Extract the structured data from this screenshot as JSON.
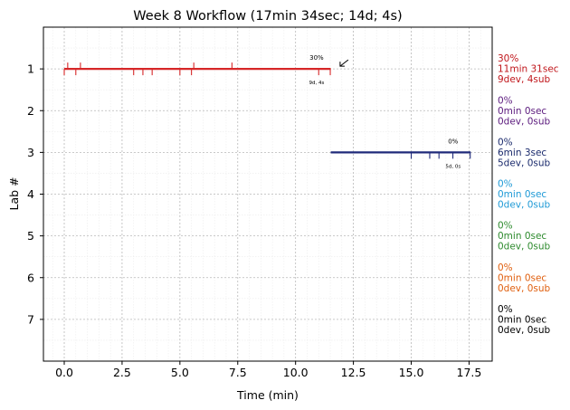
{
  "chart_data": {
    "type": "line",
    "title": "Week 8 Workflow (17min 34sec; 14d; 4s)",
    "xlabel": "Time (min)",
    "ylabel": "Lab #",
    "xlim": [
      -0.9,
      18.5
    ],
    "ylim": [
      8,
      0
    ],
    "x_ticks": [
      {
        "value": 0.0,
        "label": "0.0"
      },
      {
        "value": 2.5,
        "label": "2.5"
      },
      {
        "value": 5.0,
        "label": "5.0"
      },
      {
        "value": 7.5,
        "label": "7.5"
      },
      {
        "value": 10.0,
        "label": "10.0"
      },
      {
        "value": 12.5,
        "label": "12.5"
      },
      {
        "value": 15.0,
        "label": "15.0"
      },
      {
        "value": 17.5,
        "label": "17.5"
      }
    ],
    "y_ticks": [
      {
        "value": 1,
        "label": "1"
      },
      {
        "value": 2,
        "label": "2"
      },
      {
        "value": 3,
        "label": "3"
      },
      {
        "value": 4,
        "label": "4"
      },
      {
        "value": 5,
        "label": "5"
      },
      {
        "value": 6,
        "label": "6"
      },
      {
        "value": 7,
        "label": "7"
      }
    ],
    "grid": true,
    "segments": [
      {
        "lab": 1,
        "start": 0.0,
        "end": 11.52,
        "color": "#d62728"
      },
      {
        "lab": 3,
        "start": 11.52,
        "end": 17.57,
        "color": "#1f2a7a"
      }
    ],
    "dev_ticks": [
      {
        "lab": 1,
        "x": 0.0,
        "color": "#d62728"
      },
      {
        "lab": 1,
        "x": 0.5,
        "color": "#d62728"
      },
      {
        "lab": 1,
        "x": 3.0,
        "color": "#d62728"
      },
      {
        "lab": 1,
        "x": 3.4,
        "color": "#d62728"
      },
      {
        "lab": 1,
        "x": 3.8,
        "color": "#d62728"
      },
      {
        "lab": 1,
        "x": 5.0,
        "color": "#d62728"
      },
      {
        "lab": 1,
        "x": 5.5,
        "color": "#d62728"
      },
      {
        "lab": 1,
        "x": 11.0,
        "color": "#d62728"
      },
      {
        "lab": 1,
        "x": 11.5,
        "color": "#d62728"
      },
      {
        "lab": 3,
        "x": 15.0,
        "color": "#1f2a7a"
      },
      {
        "lab": 3,
        "x": 15.8,
        "color": "#1f2a7a"
      },
      {
        "lab": 3,
        "x": 16.2,
        "color": "#1f2a7a"
      },
      {
        "lab": 3,
        "x": 16.8,
        "color": "#1f2a7a"
      },
      {
        "lab": 3,
        "x": 17.55,
        "color": "#1f2a7a"
      }
    ],
    "sub_ticks": [
      {
        "lab": 1,
        "x": 0.15,
        "color": "#d62728"
      },
      {
        "lab": 1,
        "x": 0.7,
        "color": "#d62728"
      },
      {
        "lab": 1,
        "x": 5.6,
        "color": "#d62728"
      },
      {
        "lab": 1,
        "x": 7.25,
        "color": "#d62728"
      }
    ],
    "annotations": [
      {
        "lab": 1,
        "x": 11.3,
        "pct": "30%",
        "counts": "9d, 4s",
        "arrow": true
      },
      {
        "lab": 3,
        "x": 17.2,
        "pct": "0%",
        "counts": "5d, 0s",
        "arrow": false
      }
    ],
    "lab_summaries": [
      {
        "lab": 1,
        "lines": [
          "30%",
          "11min 31sec",
          "9dev, 4sub"
        ],
        "color": "#c0161b"
      },
      {
        "lab": 2,
        "lines": [
          "0%",
          "0min 0sec",
          "0dev, 0sub"
        ],
        "color": "#5b1a7d"
      },
      {
        "lab": 3,
        "lines": [
          "0%",
          "6min 3sec",
          "5dev, 0sub"
        ],
        "color": "#1a2a6c"
      },
      {
        "lab": 4,
        "lines": [
          "0%",
          "0min 0sec",
          "0dev, 0sub"
        ],
        "color": "#1f9ad6"
      },
      {
        "lab": 5,
        "lines": [
          "0%",
          "0min 0sec",
          "0dev, 0sub"
        ],
        "color": "#2e8b2e"
      },
      {
        "lab": 6,
        "lines": [
          "0%",
          "0min 0sec",
          "0dev, 0sub"
        ],
        "color": "#e06010"
      },
      {
        "lab": 7,
        "lines": [
          "0%",
          "0min 0sec",
          "0dev, 0sub"
        ],
        "color": "#000000"
      }
    ]
  }
}
